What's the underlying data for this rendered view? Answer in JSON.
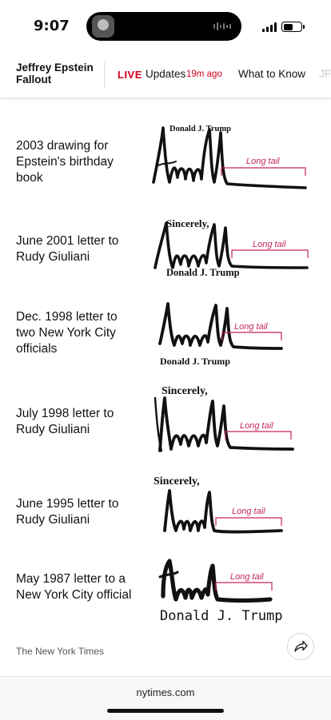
{
  "status_bar": {
    "time": "9:07"
  },
  "nav": {
    "section_title": "Jeffrey Epstein Fallout",
    "live_label": "LIVE",
    "updates_label": "Updates",
    "updated_ago": "19m ago",
    "tab_what_to_know": "What to Know",
    "tab_more": "JF"
  },
  "figure": {
    "tail_label": "Long tail",
    "rows": [
      {
        "caption": "2003 drawing for Epstein's birthday book",
        "header": "Donald J. Trump",
        "footer": ""
      },
      {
        "caption": "June 2001 letter to Rudy Giuliani",
        "header": "Sincerely,",
        "footer": "Donald J. Trump"
      },
      {
        "caption": "Dec. 1998 letter to two New York City officials",
        "header": "",
        "footer": "Donald J. Trump"
      },
      {
        "caption": "July 1998 letter to Rudy Giuliani",
        "header": "Sincerely,",
        "footer": ""
      },
      {
        "caption": "June 1995 letter to Rudy Giuliani",
        "header": "Sincerely,",
        "footer": ""
      },
      {
        "caption": "May 1987 letter to a New York City official",
        "header": "",
        "footer": "Donald J. Trump"
      }
    ],
    "credit": "The New York Times"
  },
  "browser": {
    "url": "nytimes.com"
  },
  "colors": {
    "live_red": "#d0021b",
    "annotation": "#c5255a"
  }
}
